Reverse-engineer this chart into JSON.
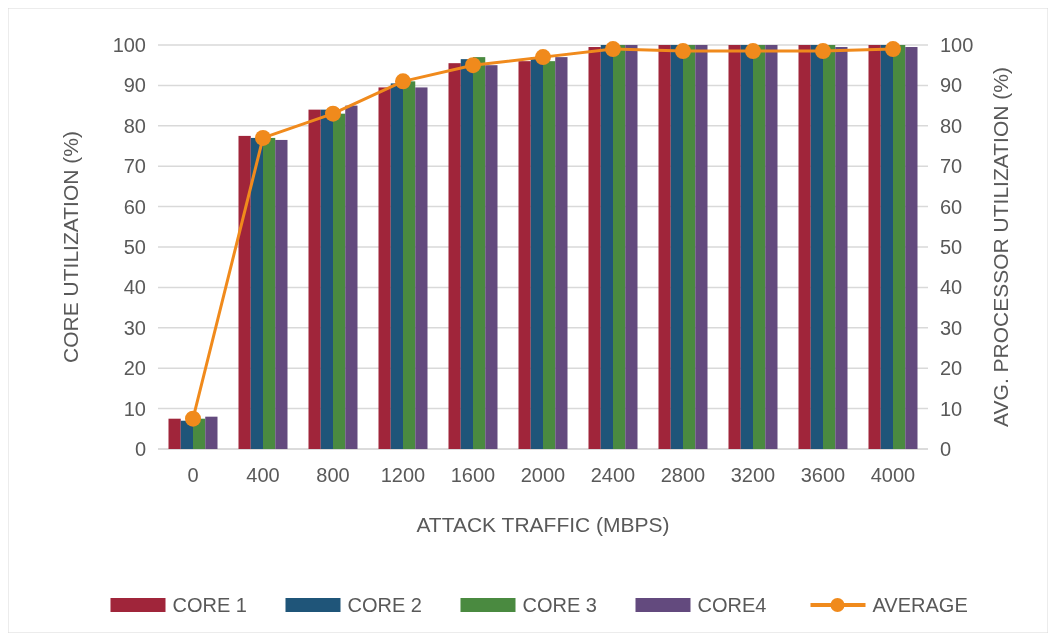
{
  "chart_data": {
    "type": "bar",
    "xlabel": "ATTACK TRAFFIC (MBPS)",
    "ylabel": "CORE UTILIZATION (%)",
    "y2label": "AVG. PROCESSOR UTILIZATION (%)",
    "categories": [
      "0",
      "400",
      "800",
      "1200",
      "1600",
      "2000",
      "2400",
      "2800",
      "3200",
      "3600",
      "4000"
    ],
    "series": [
      {
        "name": "CORE 1",
        "color": "#a0253a",
        "values": [
          7.5,
          77.5,
          84,
          89.5,
          95.5,
          96,
          99.5,
          100,
          100,
          100,
          100
        ]
      },
      {
        "name": "CORE 2",
        "color": "#1f5579",
        "values": [
          7,
          77,
          84,
          90.5,
          96.5,
          97,
          100,
          100,
          100,
          100,
          100
        ]
      },
      {
        "name": "CORE 3",
        "color": "#4a8a40",
        "values": [
          7.5,
          77,
          83,
          91,
          97,
          96,
          100,
          100,
          100,
          100,
          100
        ]
      },
      {
        "name": "CORE4",
        "color": "#634a7e",
        "values": [
          8,
          76.5,
          85,
          89.5,
          95,
          97,
          100,
          100,
          100,
          99.5,
          99.5
        ]
      },
      {
        "name": "AVERAGE",
        "type": "line",
        "axis": "y2",
        "color": "#f08a1c",
        "marker": "circle",
        "values": [
          7.5,
          77,
          83,
          91,
          95,
          97,
          99,
          98.5,
          98.5,
          98.5,
          99
        ]
      }
    ],
    "ylim": [
      0,
      100
    ],
    "yticks": [
      0,
      10,
      20,
      30,
      40,
      50,
      60,
      70,
      80,
      90,
      100
    ],
    "y2lim": [
      0,
      100
    ],
    "y2ticks": [
      0,
      10,
      20,
      30,
      40,
      50,
      60,
      70,
      80,
      90,
      100
    ],
    "grid": "y",
    "legend": "bottom"
  }
}
